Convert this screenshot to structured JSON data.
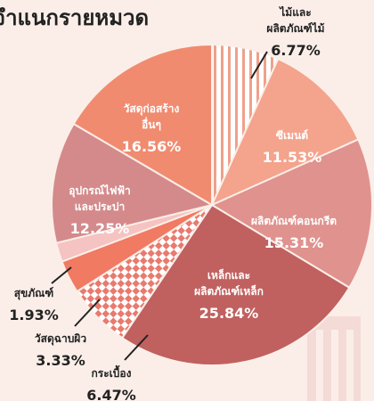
{
  "chart_data": {
    "type": "pie",
    "title": "จำแนกรายหมวด",
    "categories": [
      [
        "ไม้และ",
        "ผลิตภัณฑ์ไม้"
      ],
      [
        "ซีเมนต์"
      ],
      [
        "ผลิตภัณฑ์คอนกรีต"
      ],
      [
        "เหล็กและ",
        "ผลิตภัณฑ์เหล็ก"
      ],
      [
        "กระเบื้อง"
      ],
      [
        "วัสดุฉาบผิว"
      ],
      [
        "สุขภัณฑ์"
      ],
      [
        "อุปกรณ์ไฟฟ้า",
        "และประปา"
      ],
      [
        "วัสดุก่อสร้าง",
        "อื่นๆ"
      ]
    ],
    "values": [
      6.77,
      11.53,
      15.31,
      25.84,
      6.47,
      3.33,
      1.93,
      12.25,
      16.56
    ],
    "value_labels": [
      "6.77%",
      "11.53%",
      "15.31%",
      "25.84%",
      "6.47%",
      "3.33%",
      "1.93%",
      "12.25%",
      "16.56%"
    ],
    "colors": [
      "url(#stripes)",
      "#f4a38c",
      "#e0928e",
      "#c0615f",
      "url(#checks)",
      "#f07a62",
      "#f5c3c1",
      "#d48a8b",
      "#f08b70"
    ]
  }
}
